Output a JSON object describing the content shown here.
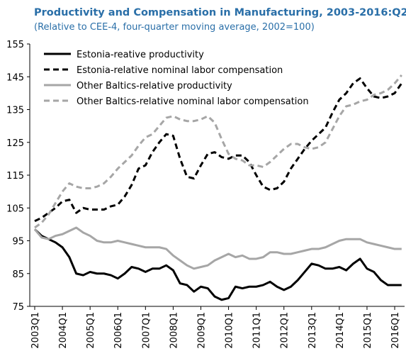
{
  "chart_data": {
    "type": "line",
    "title": "Productivity and Compensation in Manufacturing, 2003-2016:Q2",
    "subtitle": "(Relative to CEE-4, four-quarter moving average, 2002=100)",
    "categories": [
      "2003Q1",
      null,
      null,
      null,
      "2004Q1",
      null,
      null,
      null,
      "2005Q1",
      null,
      null,
      null,
      "2006Q1",
      null,
      null,
      null,
      "2007Q1",
      null,
      null,
      null,
      "2008Q1",
      null,
      null,
      null,
      "2009Q1",
      null,
      null,
      null,
      "2010Q1",
      null,
      null,
      null,
      "2011Q1",
      null,
      null,
      null,
      "2012Q1",
      null,
      null,
      null,
      "2013Q1",
      null,
      null,
      null,
      "2014Q1",
      null,
      null,
      null,
      "2015Q1",
      null,
      null,
      null,
      "2016Q1",
      null
    ],
    "ylim": [
      75,
      155
    ],
    "yticks": [
      75,
      85,
      95,
      105,
      115,
      125,
      135,
      145,
      155
    ],
    "grid": false,
    "legend": "upper left",
    "series": [
      {
        "name": "Estonia-reative productivity",
        "color": "#000000",
        "line_style": "solid",
        "values": [
          98.5,
          96.5,
          95.5,
          94.5,
          93,
          90,
          85,
          84.5,
          85.5,
          85,
          85,
          84.5,
          83.5,
          85,
          87,
          86.5,
          85.5,
          86.5,
          86.5,
          87.5,
          86,
          82,
          81.5,
          79.5,
          81,
          80.5,
          78,
          77,
          77.5,
          81,
          80.5,
          81,
          81,
          81.5,
          82.5,
          81,
          80,
          81,
          83,
          85.5,
          88,
          87.5,
          86.5,
          86.5,
          87,
          86,
          88,
          89.5,
          86.5,
          85.5,
          83,
          81.5,
          81.5,
          81.5
        ]
      },
      {
        "name": "Estonia-relative nominal labor compensation",
        "color": "#000000",
        "line_style": "dashed",
        "values": [
          101,
          102,
          103.5,
          105,
          107,
          107.5,
          103.5,
          105,
          104.5,
          104.5,
          104.5,
          105.5,
          106,
          108.5,
          112,
          117,
          118,
          122,
          125,
          127.5,
          127,
          120,
          114.5,
          114,
          118,
          121.5,
          122,
          120.5,
          120,
          121,
          121,
          119,
          115,
          111.5,
          110.5,
          111,
          113,
          117,
          120,
          123,
          125.5,
          127.5,
          129.5,
          134,
          138,
          140,
          143,
          144.5,
          141.5,
          139,
          138.5,
          139,
          140,
          143
        ]
      },
      {
        "name": "Other Baltics-relative productivity",
        "color": "#a6a6a6",
        "line_style": "solid",
        "values": [
          98.5,
          96,
          95.5,
          96.5,
          97,
          98,
          99,
          97.5,
          96.5,
          95,
          94.5,
          94.5,
          95,
          94.5,
          94,
          93.5,
          93,
          93,
          93,
          92.5,
          90.5,
          89,
          87.5,
          86.5,
          87,
          87.5,
          89,
          90,
          91,
          90,
          90.5,
          89.5,
          89.5,
          90,
          91.5,
          91.5,
          91,
          91,
          91.5,
          92,
          92.5,
          92.5,
          93,
          94,
          95,
          95.5,
          95.5,
          95.5,
          94.5,
          94,
          93.5,
          93,
          92.5,
          92.5
        ]
      },
      {
        "name": "Other Baltics-relative nominal labor compensation",
        "color": "#a6a6a6",
        "line_style": "dashed",
        "values": [
          99,
          100.5,
          103,
          106.5,
          110,
          112.5,
          111.5,
          111,
          111,
          111.5,
          112.5,
          114.5,
          117,
          119,
          121,
          124,
          126.5,
          127.5,
          130,
          132.5,
          133,
          132,
          131.5,
          131.5,
          132,
          133,
          131,
          126,
          121.5,
          120,
          119.5,
          118,
          118,
          117.5,
          119,
          121,
          123,
          124.5,
          124.5,
          123.5,
          123,
          123.5,
          125,
          129,
          133,
          136,
          136.5,
          137.5,
          138,
          139.5,
          140,
          141,
          143,
          145.5
        ]
      }
    ]
  }
}
